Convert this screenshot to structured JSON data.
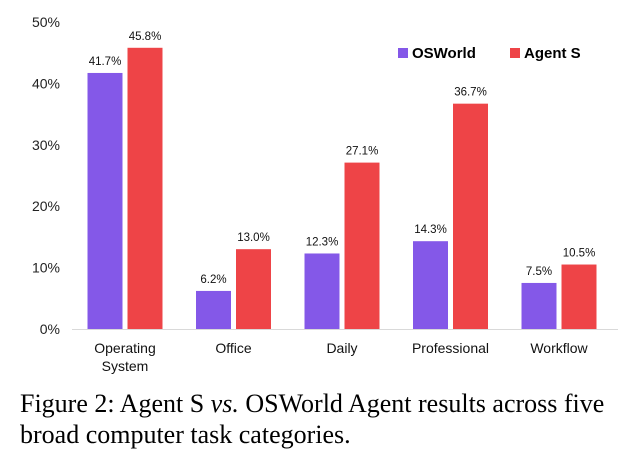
{
  "chart_data": {
    "type": "bar",
    "categories": [
      [
        "Operating",
        "System"
      ],
      [
        "Office"
      ],
      [
        "Daily"
      ],
      [
        "Professional"
      ],
      [
        "Workflow"
      ]
    ],
    "series": [
      {
        "name": "OSWorld",
        "color": "#8458E8",
        "values": [
          41.7,
          6.2,
          12.3,
          14.3,
          7.5
        ],
        "labels": [
          "41.7%",
          "6.2%",
          "12.3%",
          "14.3%",
          "7.5%"
        ]
      },
      {
        "name": "Agent S",
        "color": "#EE4447",
        "values": [
          45.8,
          13.0,
          27.1,
          36.7,
          10.5
        ],
        "labels": [
          "45.8%",
          "13.0%",
          "27.1%",
          "36.7%",
          "10.5%"
        ]
      }
    ],
    "ylim": [
      0,
      50
    ],
    "yticks": [
      0,
      10,
      20,
      30,
      40,
      50
    ],
    "ytick_labels": [
      "0%",
      "10%",
      "20%",
      "30%",
      "40%",
      "50%"
    ],
    "grid": false,
    "legend_position": "top-right",
    "axis_color": "#d9d9d9"
  },
  "caption": {
    "prefix": "Figure 2:  Agent S ",
    "vs": "vs.",
    "suffix": "  OSWorld Agent results across five broad computer task categories."
  }
}
